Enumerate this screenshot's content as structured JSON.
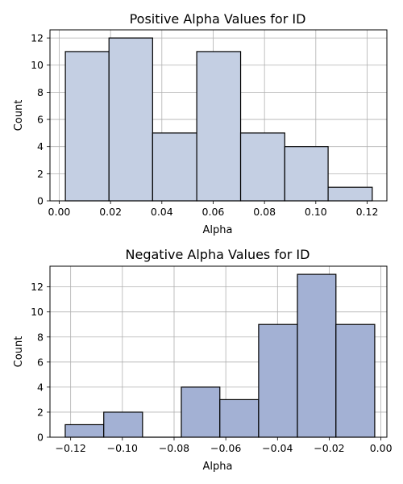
{
  "chart_data": [
    {
      "type": "bar",
      "title": "Positive Alpha Values for ID",
      "xlabel": "Alpha",
      "ylabel": "Count",
      "xlim": [
        -0.0036,
        0.1277
      ],
      "ylim": [
        0,
        12.6
      ],
      "xticks": [
        "0.00",
        "0.02",
        "0.04",
        "0.06",
        "0.08",
        "0.10",
        "0.12"
      ],
      "yticks": [
        "0",
        "2",
        "4",
        "6",
        "8",
        "10",
        "12"
      ],
      "grid": true,
      "bar_color": "#c4cfe3",
      "edge_color": "#000000",
      "bins": [
        {
          "x0": 0.0024,
          "x1": 0.0194,
          "count": 11
        },
        {
          "x0": 0.0194,
          "x1": 0.0364,
          "count": 12
        },
        {
          "x0": 0.0364,
          "x1": 0.0536,
          "count": 5
        },
        {
          "x0": 0.0536,
          "x1": 0.0707,
          "count": 11
        },
        {
          "x0": 0.0707,
          "x1": 0.0879,
          "count": 5
        },
        {
          "x0": 0.0879,
          "x1": 0.1048,
          "count": 4
        },
        {
          "x0": 0.1048,
          "x1": 0.122,
          "count": 1
        }
      ]
    },
    {
      "type": "bar",
      "title": "Negative Alpha Values for ID",
      "xlabel": "Alpha",
      "ylabel": "Count",
      "xlim": [
        -0.128,
        0.0023
      ],
      "ylim": [
        0,
        13.65
      ],
      "xticks": [
        "−0.12",
        "−0.10",
        "−0.08",
        "−0.06",
        "−0.04",
        "−0.02",
        "0.00"
      ],
      "yticks": [
        "0",
        "2",
        "4",
        "6",
        "8",
        "10",
        "12"
      ],
      "grid": true,
      "bar_color": "#a3b1d4",
      "edge_color": "#000000",
      "bins": [
        {
          "x0": -0.1221,
          "x1": -0.1072,
          "count": 1
        },
        {
          "x0": -0.1072,
          "x1": -0.0922,
          "count": 2
        },
        {
          "x0": -0.0922,
          "x1": -0.0772,
          "count": 0
        },
        {
          "x0": -0.0772,
          "x1": -0.0623,
          "count": 4
        },
        {
          "x0": -0.0623,
          "x1": -0.0473,
          "count": 3
        },
        {
          "x0": -0.0473,
          "x1": -0.0323,
          "count": 9
        },
        {
          "x0": -0.0323,
          "x1": -0.0174,
          "count": 13
        },
        {
          "x0": -0.0174,
          "x1": -0.0024,
          "count": 9
        }
      ]
    }
  ]
}
